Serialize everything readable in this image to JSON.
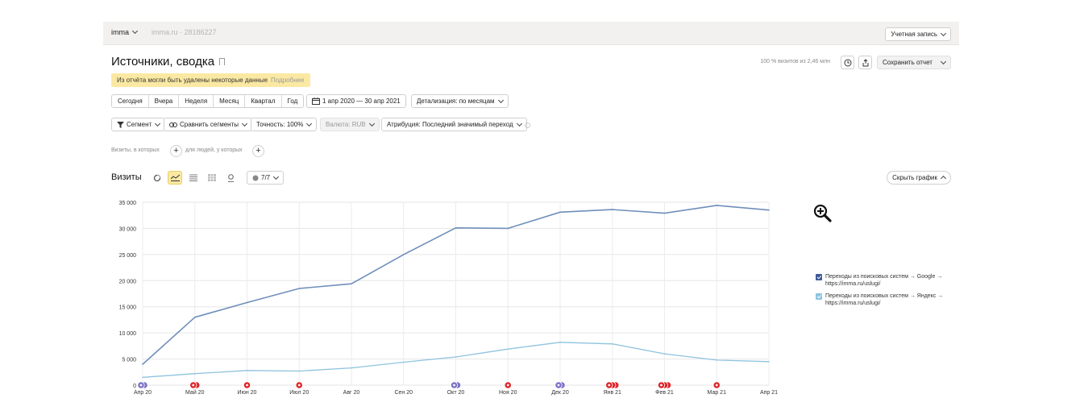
{
  "topbar": {
    "counter_name": "imma",
    "site": "imma.ru",
    "counter_id": "28186227",
    "account_label": "Учетная запись"
  },
  "header": {
    "title": "Источники, сводка",
    "visits_pct": "100 % визитов из 2,46 млн",
    "save_label": "Сохранить отчет"
  },
  "notice": {
    "text": "Из отчёта могли быть удалены некоторые данные",
    "more": "Подробнее"
  },
  "periods": [
    "Сегодня",
    "Вчера",
    "Неделя",
    "Месяц",
    "Квартал",
    "Год"
  ],
  "date_range": "1 апр 2020 — 30 апр 2021",
  "detail_label": "Детализация: по месяцам",
  "filters": {
    "segment": "Сегмент",
    "compare": "Сравнить сегменты",
    "accuracy": "Точность: 100%",
    "currency": "Валюта: RUB",
    "attribution": "Атрибуция: Последний значимый переход"
  },
  "conditions": {
    "visits_where": "Визиты, в которых",
    "people_where": "для людей, у которых"
  },
  "chart_header": {
    "title": "Визиты",
    "series_count": "7/7",
    "hide_label": "Скрыть график"
  },
  "colors": {
    "series1": "#6f8fbb",
    "series2": "#8ec3df",
    "accent_yellow": "#fbe9a3",
    "marker_red": "#e0252a",
    "marker_purple": "#7b72c8"
  },
  "chart_data": {
    "type": "line",
    "x": [
      "Апр 20",
      "Май 20",
      "Июн 20",
      "Июл 20",
      "Авг 20",
      "Сен 20",
      "Окт 20",
      "Ноя 20",
      "Дек 20",
      "Янв 21",
      "Фев 21",
      "Мар 21",
      "Апр 21"
    ],
    "ylim": [
      0,
      35000
    ],
    "yticks": [
      "0",
      "5 000",
      "10 000",
      "15 000",
      "20 000",
      "25 000",
      "30 000",
      "35 000"
    ],
    "yticks_values": [
      0,
      5000,
      10000,
      15000,
      20000,
      25000,
      30000,
      35000
    ],
    "grid": true,
    "legend_position": "right",
    "series": [
      {
        "name": "Переходы из поисковых систем → Google → https://imma.ru/uslugi/",
        "values": [
          4000,
          13000,
          15800,
          18500,
          19400,
          25000,
          30100,
          30000,
          33100,
          33600,
          32900,
          34400,
          33500
        ]
      },
      {
        "name": "Переходы из поисковых систем → Яндекс → https://imma.ru/uslugi/",
        "values": [
          1500,
          2200,
          2800,
          2700,
          3300,
          4400,
          5400,
          6900,
          8200,
          7900,
          6000,
          4800,
          4500
        ]
      }
    ],
    "markers": [
      "purple-double",
      "red-double",
      "red",
      "red",
      "",
      "",
      "purple-double",
      "red",
      "purple-double",
      "red-triple",
      "red-triple",
      "red",
      ""
    ]
  }
}
